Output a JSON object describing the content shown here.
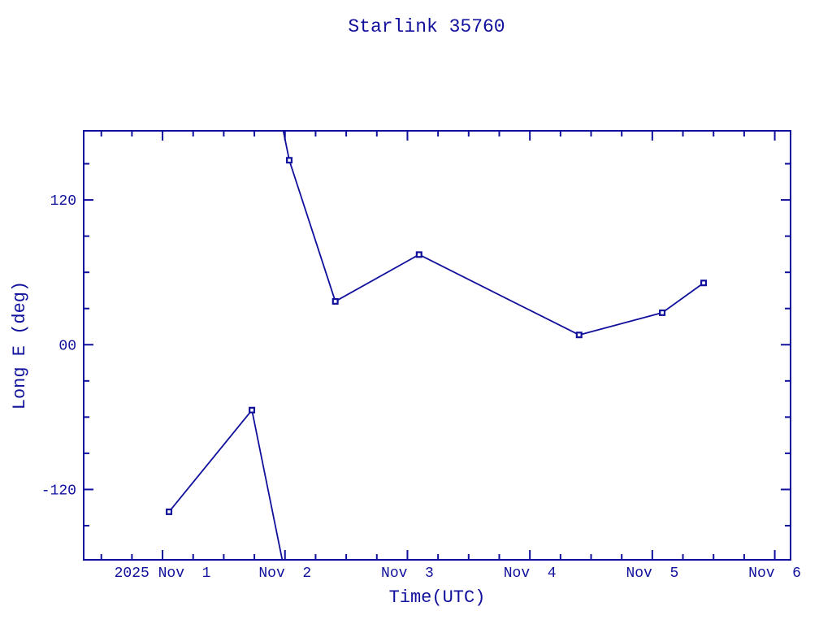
{
  "page": {
    "background": "#ffffff",
    "accent_color": "#10109c"
  },
  "chart_data": {
    "type": "line",
    "title": "Starlink 35760",
    "xlabel": "Time(UTC)",
    "ylabel": "Long E (deg)",
    "series_color": "#10109c",
    "marker": "open-square",
    "grid": "off",
    "legend": "none",
    "x_axis": {
      "unit": "days relative to 2025 Nov 1 00:00 UTC",
      "range_days": [
        -0.644,
        5.129
      ],
      "major_ticks_days": [
        0,
        1,
        2,
        3,
        4,
        5
      ],
      "major_tick_labels": [
        "2025 Nov  1",
        "Nov  2",
        "Nov  3",
        "Nov  4",
        "Nov  5",
        "Nov  6"
      ],
      "minor_tick_step_days": 0.25
    },
    "y_axis": {
      "unit": "degrees east longitude",
      "range_deg": [
        -178.3,
        177.3
      ],
      "major_ticks_deg": [
        120,
        0,
        -120
      ],
      "major_tick_labels": [
        "120",
        "00",
        "-120"
      ],
      "minor_tick_step_deg": 30
    },
    "wrap_longitude_at_deg": 180,
    "points": [
      {
        "time_utc": "2025 Nov 1 01:16",
        "day": 0.053,
        "long_e_deg": -138.5
      },
      {
        "time_utc": "2025 Nov 1 17:31",
        "day": 0.73,
        "long_e_deg": -54.2
      },
      {
        "time_utc": "2025 Nov 2 00:50",
        "day": 1.035,
        "long_e_deg": 152.9
      },
      {
        "time_utc": "2025 Nov 2 09:52",
        "day": 1.411,
        "long_e_deg": 35.9
      },
      {
        "time_utc": "2025 Nov 3 02:17",
        "day": 2.095,
        "long_e_deg": 74.7
      },
      {
        "time_utc": "2025 Nov 4 09:39",
        "day": 3.402,
        "long_e_deg": 8.1
      },
      {
        "time_utc": "2025 Nov 5 01:57",
        "day": 4.081,
        "long_e_deg": 26.5
      },
      {
        "time_utc": "2025 Nov 5 10:03",
        "day": 4.419,
        "long_e_deg": 51.2
      }
    ]
  }
}
